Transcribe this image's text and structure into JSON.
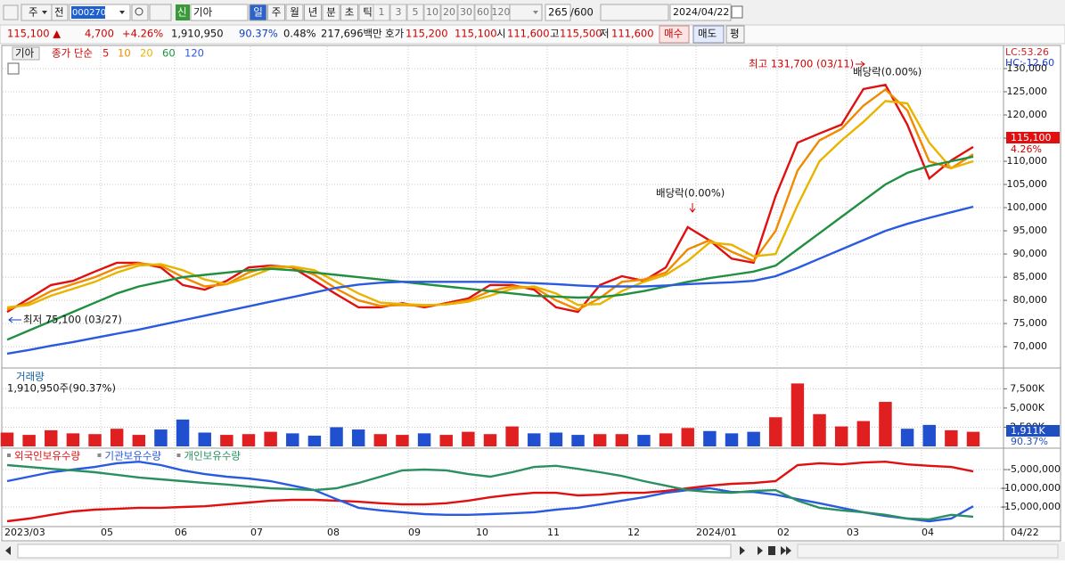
{
  "toolbar": {
    "market": "주",
    "compare": "전",
    "code": "000270",
    "new": "신",
    "name": "기아",
    "periods": [
      "일",
      "주",
      "월",
      "년",
      "분",
      "초",
      "틱"
    ],
    "intervals": [
      "1",
      "3",
      "5",
      "10",
      "20",
      "30",
      "60",
      "120"
    ],
    "count": "265",
    "max": "/600",
    "date": "2024/04/22"
  },
  "quote": {
    "price": "115,100 ▲",
    "change": "4,700",
    "change_pct": "+4.26%",
    "volume": "1,910,950",
    "volume_ratio": "90.37%",
    "turnover": "0.48%",
    "amount": "217,696백만",
    "ask_label": "호가",
    "ask": "115,200",
    "bid": "115,100",
    "open_label": "시",
    "open": "111,600",
    "high_label": "고",
    "high": "115,500",
    "low_label": "저",
    "low": "111,600",
    "buy": "매수",
    "sell": "매도",
    "avg": "평"
  },
  "price_chart": {
    "type": "line",
    "name": "기아",
    "label": "종가 단순",
    "lc": "LC:53.26",
    "hc": "HC:-12.60",
    "last_price": "115,100",
    "last_change": "4.26%",
    "annotations": [
      "최고 131,700 (03/11)",
      "배당락(0.00%)",
      "배당락(0.00%)",
      "최저 75,100 (03/27)"
    ],
    "ylim": [
      65600,
      134800
    ],
    "yticks": [
      {
        "value": 70000,
        "label": "70,000"
      },
      {
        "value": 75000,
        "label": "75,000"
      },
      {
        "value": 80000,
        "label": "80,000"
      },
      {
        "value": 85000,
        "label": "85,000"
      },
      {
        "value": 90000,
        "label": "90,000"
      },
      {
        "value": 95000,
        "label": "95,000"
      },
      {
        "value": 100000,
        "label": "100,000"
      },
      {
        "value": 105000,
        "label": "105,000"
      },
      {
        "value": 110000,
        "label": "110,000"
      },
      {
        "value": 115000,
        "label": "115,000"
      },
      {
        "value": 120000,
        "label": "120,000"
      },
      {
        "value": 125000,
        "label": "125,000"
      },
      {
        "value": 130000,
        "label": "130,000"
      }
    ],
    "series": [
      {
        "name": "5",
        "color": "#e01010",
        "values": [
          77500,
          80400,
          83300,
          84200,
          86200,
          88100,
          88100,
          87100,
          83300,
          82300,
          84200,
          87100,
          87500,
          87100,
          84200,
          81300,
          78500,
          78500,
          79400,
          78500,
          79400,
          80400,
          83300,
          83300,
          82300,
          78500,
          77500,
          83300,
          85200,
          84200,
          87100,
          95800,
          92900,
          89000,
          88100,
          102500,
          114000,
          116000,
          117900,
          125600,
          126500,
          117900,
          106300,
          110200,
          113100
        ]
      },
      {
        "name": "10",
        "color": "#f08a00",
        "values": [
          78000,
          79500,
          82000,
          83500,
          85000,
          87000,
          88000,
          87500,
          85000,
          83000,
          83500,
          86000,
          87300,
          87200,
          85500,
          82500,
          80000,
          78800,
          79000,
          78800,
          79200,
          80000,
          82000,
          83000,
          82800,
          80000,
          78000,
          80500,
          84000,
          84500,
          86000,
          91000,
          93000,
          90500,
          88500,
          95000,
          108000,
          114500,
          117000,
          122000,
          125500,
          121000,
          110000,
          108500,
          111500
        ]
      },
      {
        "name": "20",
        "color": "#e8b400",
        "values": [
          78500,
          79000,
          81000,
          82500,
          84000,
          86000,
          87500,
          87800,
          86500,
          84500,
          83500,
          85000,
          86800,
          87300,
          86500,
          84000,
          81500,
          79500,
          79200,
          79000,
          79100,
          79700,
          81000,
          82500,
          83000,
          81500,
          79000,
          79200,
          82000,
          84000,
          85500,
          88500,
          92500,
          92000,
          89500,
          90000,
          100500,
          110000,
          114500,
          118500,
          123000,
          122500,
          114000,
          108500,
          110000
        ]
      },
      {
        "name": "60",
        "color": "#209040",
        "values": [
          71500,
          73500,
          75500,
          77500,
          79500,
          81500,
          83000,
          84000,
          85000,
          85500,
          86000,
          86500,
          86800,
          86500,
          86000,
          85500,
          85000,
          84500,
          84000,
          83500,
          83000,
          82500,
          82000,
          81500,
          81000,
          80800,
          80600,
          80700,
          81200,
          82000,
          83000,
          84000,
          84800,
          85500,
          86200,
          87500,
          91000,
          94500,
          98000,
          101500,
          105000,
          107500,
          109000,
          110000,
          111000
        ]
      },
      {
        "name": "120",
        "color": "#2a5ae0",
        "values": [
          68500,
          69300,
          70200,
          71000,
          71900,
          72800,
          73700,
          74700,
          75700,
          76700,
          77700,
          78700,
          79700,
          80700,
          81700,
          82700,
          83400,
          83800,
          84000,
          84000,
          84000,
          84000,
          84000,
          83900,
          83700,
          83500,
          83200,
          83000,
          83000,
          83000,
          83200,
          83500,
          83700,
          83900,
          84200,
          85200,
          87000,
          89000,
          91000,
          93000,
          95000,
          96500,
          97800,
          99000,
          100200
        ]
      }
    ]
  },
  "volume_chart": {
    "type": "bar",
    "title": "거래량",
    "summary": "1,910,950주(90.37%)",
    "last": "1,911K",
    "last_pct": "90.37%",
    "ylim": [
      0,
      10100
    ],
    "yticks": [
      {
        "value": 2500,
        "label": "2,500K"
      },
      {
        "value": 5000,
        "label": "5,000K"
      },
      {
        "value": 7500,
        "label": "7,500K"
      }
    ],
    "values": [
      1800,
      1500,
      2100,
      1700,
      1600,
      2300,
      1500,
      2200,
      3500,
      1800,
      1500,
      1600,
      1900,
      1700,
      1400,
      2500,
      2200,
      1600,
      1500,
      1700,
      1500,
      1900,
      1600,
      2600,
      1700,
      1800,
      1500,
      1600,
      1600,
      1500,
      1700,
      2400,
      2000,
      1700,
      1900,
      3800,
      8200,
      4200,
      2600,
      3300,
      5800,
      2300,
      2800,
      2100,
      1900
    ]
  },
  "holdings_chart": {
    "type": "line",
    "ylim": [
      -20000000,
      250000
    ],
    "yticks": [
      {
        "value": -5000000,
        "label": "-5,000,000"
      },
      {
        "value": -10000000,
        "label": "-10,000,000"
      },
      {
        "value": -15000000,
        "label": "-15,000,000"
      }
    ],
    "series": [
      {
        "name": "외국인보유수량",
        "color": "#e01010",
        "values": [
          -18800000,
          -18100000,
          -17100000,
          -16200000,
          -15700000,
          -15500000,
          -15200000,
          -15200000,
          -15000000,
          -14800000,
          -14300000,
          -13800000,
          -13300000,
          -13100000,
          -13100000,
          -13300000,
          -13600000,
          -14000000,
          -14300000,
          -14300000,
          -14000000,
          -13300000,
          -12400000,
          -11700000,
          -11200000,
          -11200000,
          -11900000,
          -11700000,
          -11200000,
          -11200000,
          -10700000,
          -10000000,
          -9300000,
          -8800000,
          -8600000,
          -8100000,
          -3800000,
          -3300000,
          -3600000,
          -3100000,
          -2900000,
          -3600000,
          -4000000,
          -4300000,
          -5500000
        ]
      },
      {
        "name": "기관보유수량",
        "color": "#2a5ae0",
        "values": [
          -8100000,
          -6900000,
          -5700000,
          -5000000,
          -4300000,
          -3300000,
          -2900000,
          -3800000,
          -5200000,
          -6200000,
          -6900000,
          -7400000,
          -8100000,
          -9300000,
          -10500000,
          -12900000,
          -15200000,
          -15900000,
          -16400000,
          -16900000,
          -17100000,
          -17100000,
          -16900000,
          -16700000,
          -16400000,
          -15700000,
          -15200000,
          -14300000,
          -13300000,
          -12400000,
          -11200000,
          -10500000,
          -10000000,
          -11000000,
          -11000000,
          -11700000,
          -12900000,
          -14000000,
          -15200000,
          -16400000,
          -17400000,
          -18100000,
          -18800000,
          -18100000,
          -14800000
        ]
      },
      {
        "name": "개인보유수량",
        "color": "#2a9060",
        "values": [
          -3800000,
          -4300000,
          -4800000,
          -5200000,
          -5700000,
          -6400000,
          -7100000,
          -7600000,
          -8100000,
          -8600000,
          -9000000,
          -9500000,
          -10000000,
          -10200000,
          -10500000,
          -10000000,
          -8600000,
          -6900000,
          -5200000,
          -5000000,
          -5200000,
          -6200000,
          -6900000,
          -5700000,
          -4300000,
          -4000000,
          -4800000,
          -5700000,
          -6700000,
          -8100000,
          -9300000,
          -10500000,
          -11000000,
          -11200000,
          -10700000,
          -10500000,
          -13300000,
          -15200000,
          -15900000,
          -16400000,
          -17100000,
          -18100000,
          -18300000,
          -17100000,
          -17600000
        ]
      }
    ]
  },
  "x_axis": {
    "labels": [
      "2023/03",
      "05",
      "06",
      "07",
      "08",
      "09",
      "10",
      "11",
      "12",
      "2024/01",
      "02",
      "03",
      "04"
    ],
    "end": "04/22"
  }
}
